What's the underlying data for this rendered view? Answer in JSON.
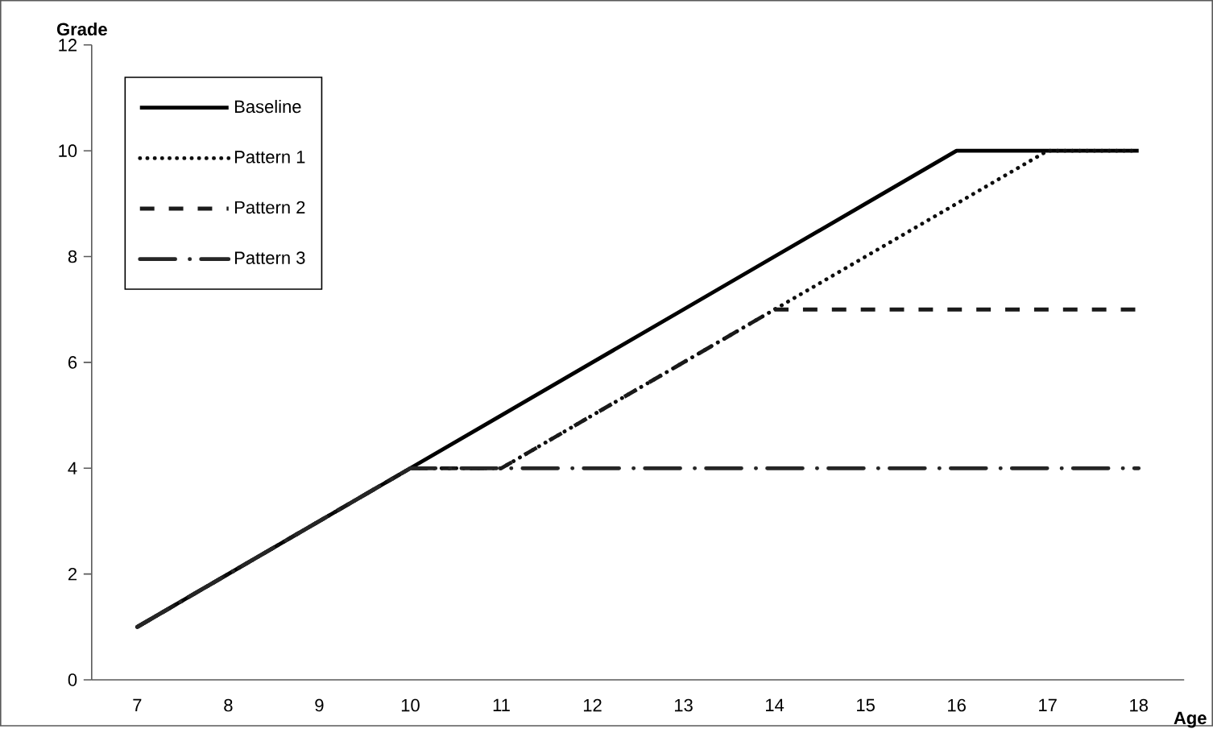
{
  "chart_data": {
    "type": "line",
    "xlabel": "Age",
    "ylabel": "Grade",
    "categories": [
      "7",
      "8",
      "9",
      "10",
      "11",
      "12",
      "13",
      "14",
      "15",
      "16",
      "17",
      "18"
    ],
    "ylim": [
      0,
      12
    ],
    "yticks": [
      0,
      2,
      4,
      6,
      8,
      10,
      12
    ],
    "legend": "top left",
    "grid": false,
    "series": [
      {
        "name": "Baseline",
        "color": "#000000",
        "line_style": "solid",
        "values": [
          1,
          2,
          3,
          4,
          5,
          6,
          7,
          8,
          9,
          10,
          10,
          10
        ]
      },
      {
        "name": "Pattern 1",
        "color": "#0d0d0d",
        "line_style": "dotted",
        "values": [
          1,
          2,
          3,
          4,
          4,
          5,
          6,
          7,
          8,
          9,
          10,
          10
        ]
      },
      {
        "name": "Pattern 2",
        "color": "#1a1a1a",
        "line_style": "dashed",
        "values": [
          1,
          2,
          3,
          4,
          4,
          5,
          6,
          7,
          7,
          7,
          7,
          7
        ]
      },
      {
        "name": "Pattern 3",
        "color": "#262626",
        "line_style": "dashdot",
        "values": [
          1,
          2,
          3,
          4,
          4,
          4,
          4,
          4,
          4,
          4,
          4,
          4
        ]
      }
    ]
  }
}
